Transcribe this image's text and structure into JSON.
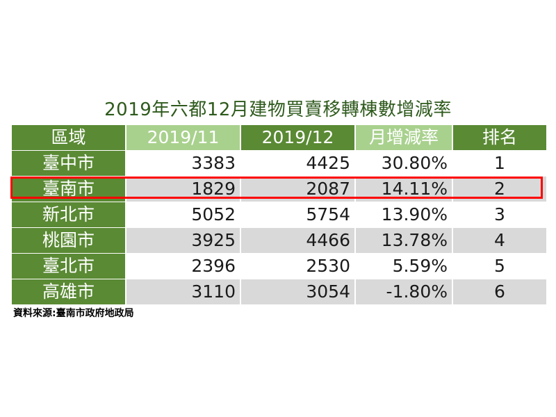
{
  "title": "2019年六都12月建物買賣移轉棟數增減率",
  "columns": [
    "區域",
    "2019/11",
    "2019/12",
    "月增減率",
    "排名"
  ],
  "rows": [
    {
      "region": "臺中市",
      "nov": "3383",
      "dec": "4425",
      "rate": "30.80%",
      "rank": "1"
    },
    {
      "region": "臺南市",
      "nov": "1829",
      "dec": "2087",
      "rate": "14.11%",
      "rank": "2"
    },
    {
      "region": "新北市",
      "nov": "5052",
      "dec": "5754",
      "rate": "13.90%",
      "rank": "3"
    },
    {
      "region": "桃園市",
      "nov": "3925",
      "dec": "4466",
      "rate": "13.78%",
      "rank": "4"
    },
    {
      "region": "臺北市",
      "nov": "2396",
      "dec": "2530",
      "rate": "5.59%",
      "rank": "5"
    },
    {
      "region": "高雄市",
      "nov": "3110",
      "dec": "3054",
      "rate": "-1.80%",
      "rank": "6"
    }
  ],
  "highlighted_region": "臺南市",
  "source": "資料來源:臺南市政府地政局",
  "colors": {
    "header_dark": "#5a8a34",
    "header_light": "#a9d18e",
    "title": "#2e5a1c",
    "highlight_border": "#ff0000",
    "row_alt": "#d9d9d9"
  }
}
